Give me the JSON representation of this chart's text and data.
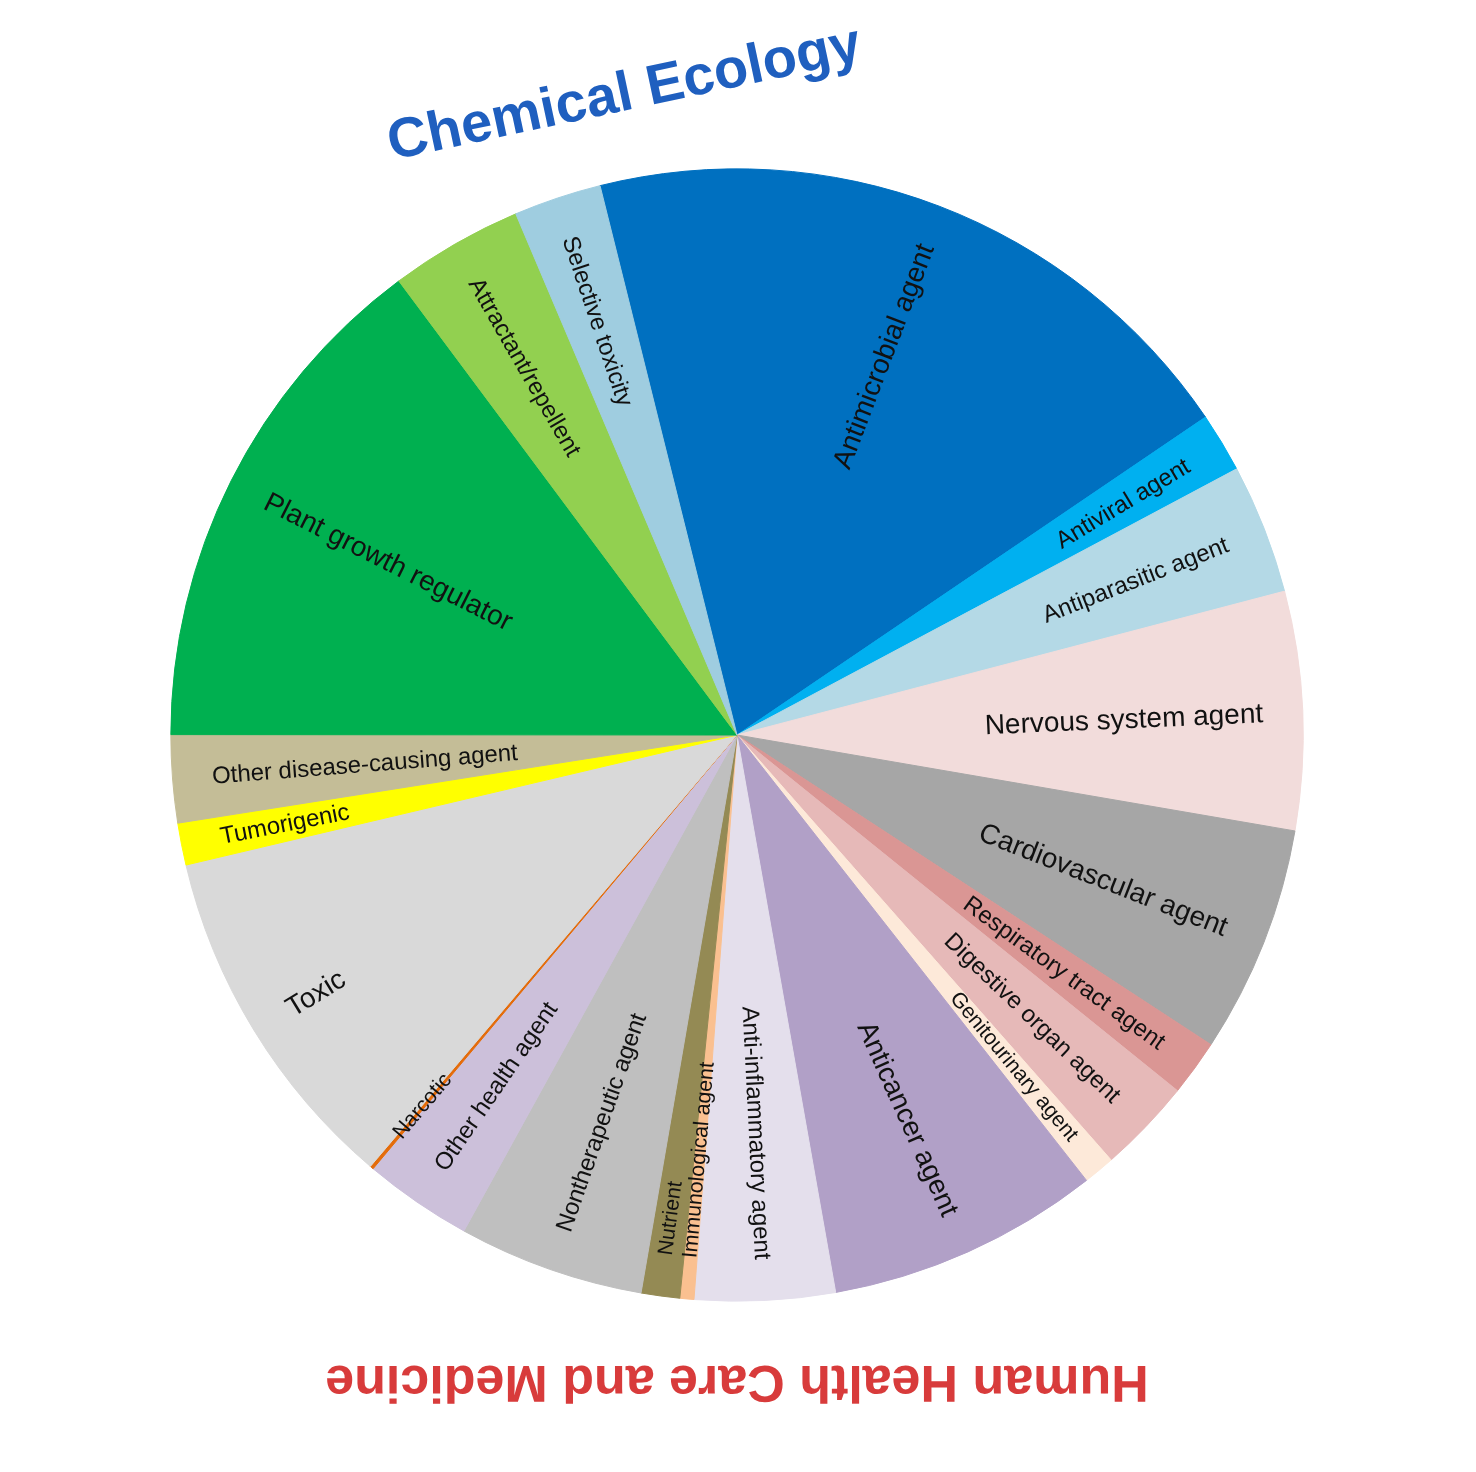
{
  "chart_data": {
    "type": "pie",
    "categories": [
      "Antimicrobial agent",
      "Antiviral agent",
      "Antiparasitic agent",
      "Nervous system agent",
      "Cardiovascular agent",
      "Respiratory tract agent",
      "Digestive organ agent",
      "Genitourinary agent",
      "Anticancer agent",
      "Anti-inflammatory agent",
      "Immunological agent",
      "Nutrient",
      "Nontherapeutic agent",
      "Other health agent",
      "Narcotic",
      "Toxic",
      "Tumorigenic",
      "Other disease-causing agent",
      "Plant growth regulator",
      "Attractant/repellent",
      "Selective toxicity"
    ],
    "values": [
      19.4,
      1.7,
      3.7,
      6.8,
      6.5,
      1.6,
      2.7,
      0.9,
      7.8,
      4.0,
      0.4,
      1.1,
      5.3,
      3.1,
      0.1,
      10.1,
      1.2,
      2.5,
      14.8,
      3.8,
      2.5
    ],
    "colors": [
      "#0070c0",
      "#00b0f0",
      "#b4d9e6",
      "#f2dcdb",
      "#a6a6a6",
      "#da9694",
      "#e6b9b8",
      "#fde9d9",
      "#b1a0c7",
      "#e4dfec",
      "#fac090",
      "#948a54",
      "#bfbfbf",
      "#ccc0da",
      "#e46c0a",
      "#d9d9d9",
      "#ffff00",
      "#c4bd97",
      "#00b050",
      "#92d050",
      "#9fcde0"
    ],
    "annotations": [
      "Chemical Ecology",
      "Human Health Care and Medicine"
    ]
  }
}
